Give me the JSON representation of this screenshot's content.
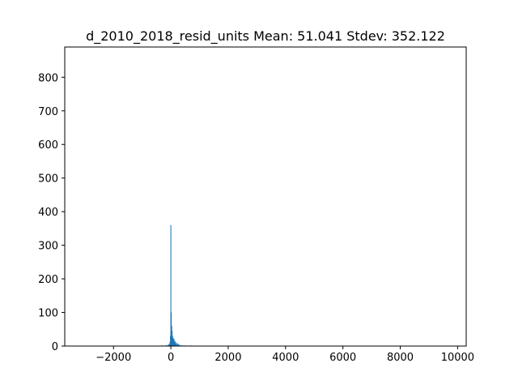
{
  "chart_data": {
    "type": "bar",
    "title": "d_2010_2018_resid_units  Mean: 51.041  Stdev: 352.122",
    "xlabel": "",
    "ylabel": "",
    "xlim": [
      -3700,
      10300
    ],
    "ylim": [
      0,
      890
    ],
    "grid": false,
    "bar_color": "#1f77b4",
    "bin_width": 30,
    "xticks": [
      -2000,
      0,
      2000,
      4000,
      6000,
      8000,
      10000
    ],
    "xtick_labels": [
      "−2000",
      "0",
      "2000",
      "4000",
      "6000",
      "8000",
      "10000"
    ],
    "yticks": [
      0,
      100,
      200,
      300,
      400,
      500,
      600,
      700,
      800
    ],
    "ytick_labels": [
      "0",
      "100",
      "200",
      "300",
      "400",
      "500",
      "600",
      "700",
      "800"
    ],
    "bins": [
      {
        "x": -300,
        "count": 2
      },
      {
        "x": -150,
        "count": 3
      },
      {
        "x": -90,
        "count": 4
      },
      {
        "x": -60,
        "count": 6
      },
      {
        "x": -30,
        "count": 12
      },
      {
        "x": -15,
        "count": 30
      },
      {
        "x": 0,
        "count": 360
      },
      {
        "x": 15,
        "count": 100
      },
      {
        "x": 30,
        "count": 60
      },
      {
        "x": 45,
        "count": 45
      },
      {
        "x": 60,
        "count": 30
      },
      {
        "x": 75,
        "count": 25
      },
      {
        "x": 90,
        "count": 20
      },
      {
        "x": 110,
        "count": 22
      },
      {
        "x": 130,
        "count": 12
      },
      {
        "x": 150,
        "count": 15
      },
      {
        "x": 170,
        "count": 8
      },
      {
        "x": 200,
        "count": 10
      },
      {
        "x": 230,
        "count": 6
      },
      {
        "x": 260,
        "count": 7
      },
      {
        "x": 300,
        "count": 4
      },
      {
        "x": 350,
        "count": 3
      },
      {
        "x": 420,
        "count": 2
      },
      {
        "x": 500,
        "count": 2
      },
      {
        "x": 600,
        "count": 1
      },
      {
        "x": 700,
        "count": 2
      },
      {
        "x": 850,
        "count": 1
      },
      {
        "x": 1000,
        "count": 1
      }
    ]
  }
}
